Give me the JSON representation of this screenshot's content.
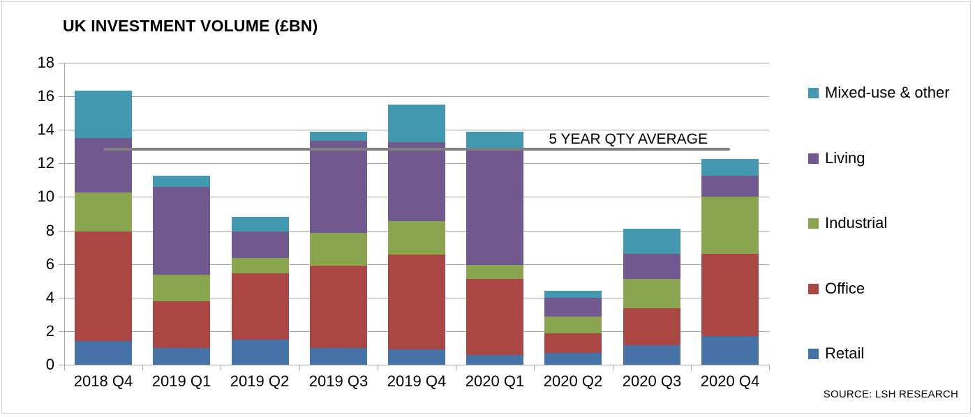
{
  "title": "UK INVESTMENT VOLUME (£BN)",
  "source_note": "SOURCE: LSH RESEARCH",
  "colors": {
    "retail": "#4572A7",
    "office": "#AA4643",
    "industrial": "#89A54E",
    "living": "#71588F",
    "mixed_use_other": "#4198AF",
    "gridline": "#A6A6A6",
    "average_line": "#808080",
    "text": "#000000"
  },
  "legend": [
    {
      "label": "Mixed-use & other",
      "color": "#4198AF"
    },
    {
      "label": "Living",
      "color": "#71588F"
    },
    {
      "label": "Industrial",
      "color": "#89A54E"
    },
    {
      "label": "Office",
      "color": "#AA4643"
    },
    {
      "label": "Retail",
      "color": "#4572A7"
    }
  ],
  "chart_data": {
    "type": "bar",
    "stacked": true,
    "title": "UK INVESTMENT VOLUME (£BN)",
    "xlabel": "",
    "ylabel": "",
    "ylim": [
      0,
      18
    ],
    "ytick_step": 2,
    "grid": true,
    "legend_position": "right",
    "categories": [
      "2018 Q4",
      "2019 Q1",
      "2019 Q2",
      "2019 Q3",
      "2019 Q4",
      "2020 Q1",
      "2020 Q2",
      "2020 Q3",
      "2020 Q4"
    ],
    "series": [
      {
        "name": "Retail",
        "color": "#4572A7",
        "values": [
          1.4,
          1.0,
          1.5,
          1.0,
          0.9,
          0.6,
          0.7,
          1.15,
          1.7
        ]
      },
      {
        "name": "Office",
        "color": "#AA4643",
        "values": [
          6.55,
          2.8,
          3.95,
          4.9,
          5.65,
          4.5,
          1.15,
          2.2,
          4.9
        ]
      },
      {
        "name": "Industrial",
        "color": "#89A54E",
        "values": [
          2.3,
          1.55,
          0.9,
          1.95,
          2.0,
          0.85,
          1.0,
          1.75,
          3.4
        ]
      },
      {
        "name": "Living",
        "color": "#71588F",
        "values": [
          3.25,
          5.25,
          1.6,
          5.5,
          4.7,
          6.95,
          1.15,
          1.5,
          1.25
        ]
      },
      {
        "name": "Mixed-use & other",
        "color": "#4198AF",
        "values": [
          2.85,
          0.65,
          0.85,
          0.55,
          2.25,
          1.0,
          0.4,
          1.5,
          1.0
        ]
      }
    ],
    "totals": [
      16.35,
      11.25,
      8.8,
      13.9,
      15.5,
      13.9,
      4.4,
      8.1,
      12.25
    ],
    "average_line": {
      "label": "5 YEAR QTY AVERAGE",
      "value": 12.85,
      "color": "#808080"
    }
  }
}
